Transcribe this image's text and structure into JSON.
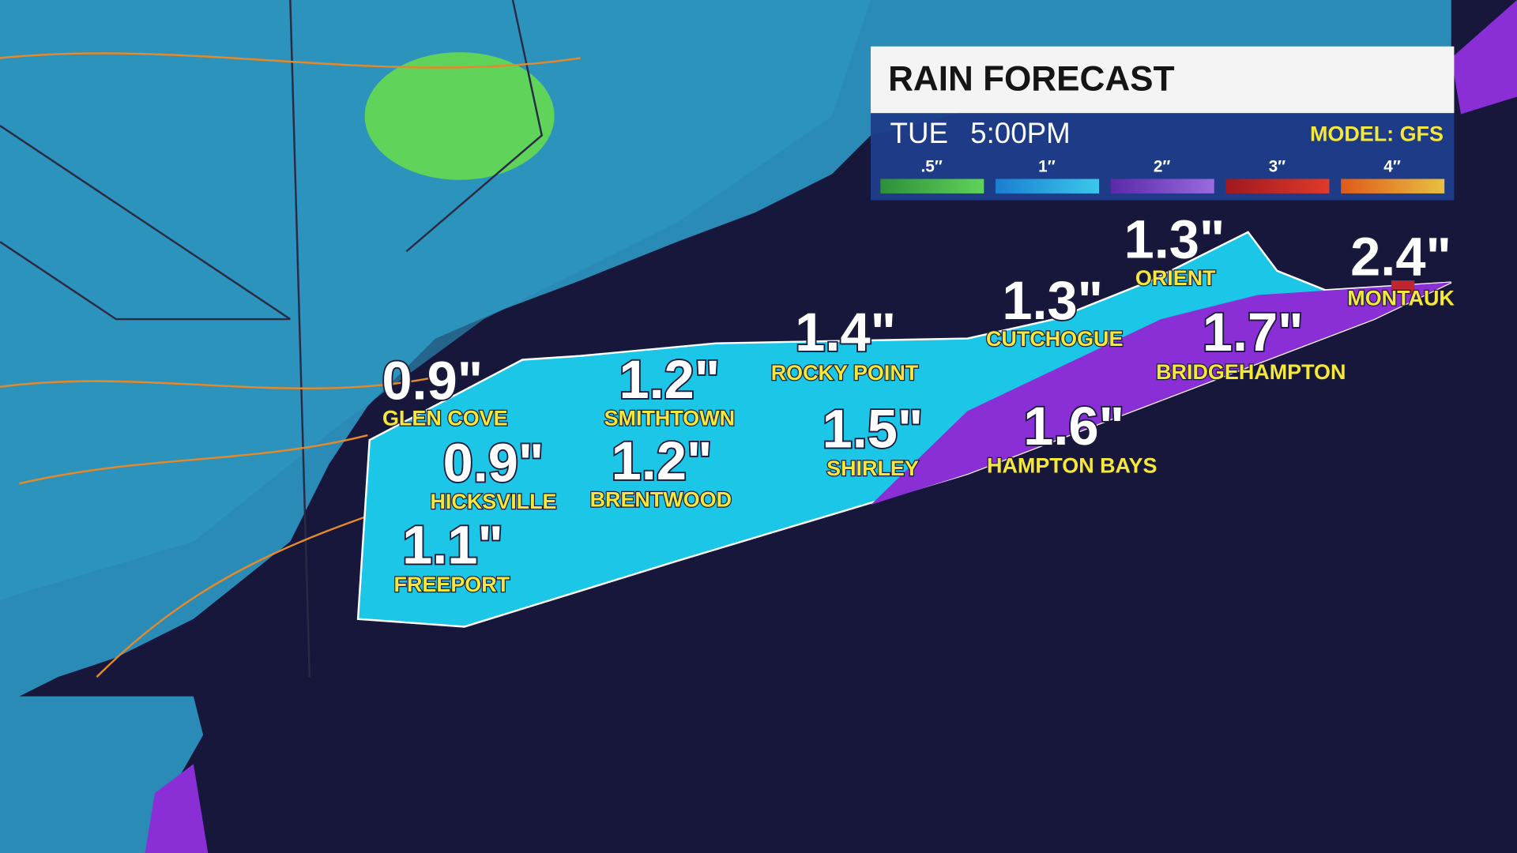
{
  "header": {
    "title": "RAIN FORECAST",
    "day": "TUE",
    "time": "5:00PM",
    "model": "MODEL: GFS"
  },
  "legend": [
    ".5″",
    "1″",
    "2″",
    "3″",
    "4″"
  ],
  "locations": [
    {
      "name": "GLEN COVE",
      "amount": "0.9\""
    },
    {
      "name": "HICKSVILLE",
      "amount": "0.9\""
    },
    {
      "name": "FREEPORT",
      "amount": "1.1\""
    },
    {
      "name": "SMITHTOWN",
      "amount": "1.2\""
    },
    {
      "name": "BRENTWOOD",
      "amount": "1.2\""
    },
    {
      "name": "ROCKY POINT",
      "amount": "1.4\""
    },
    {
      "name": "SHIRLEY",
      "amount": "1.5\""
    },
    {
      "name": "CUTCHOGUE",
      "amount": "1.3\""
    },
    {
      "name": "ORIENT",
      "amount": "1.3\""
    },
    {
      "name": "HAMPTON BAYS",
      "amount": "1.6\""
    },
    {
      "name": "BRIDGEHAMPTON",
      "amount": "1.7\""
    },
    {
      "name": "MONTAUK",
      "amount": "2.4\""
    }
  ]
}
